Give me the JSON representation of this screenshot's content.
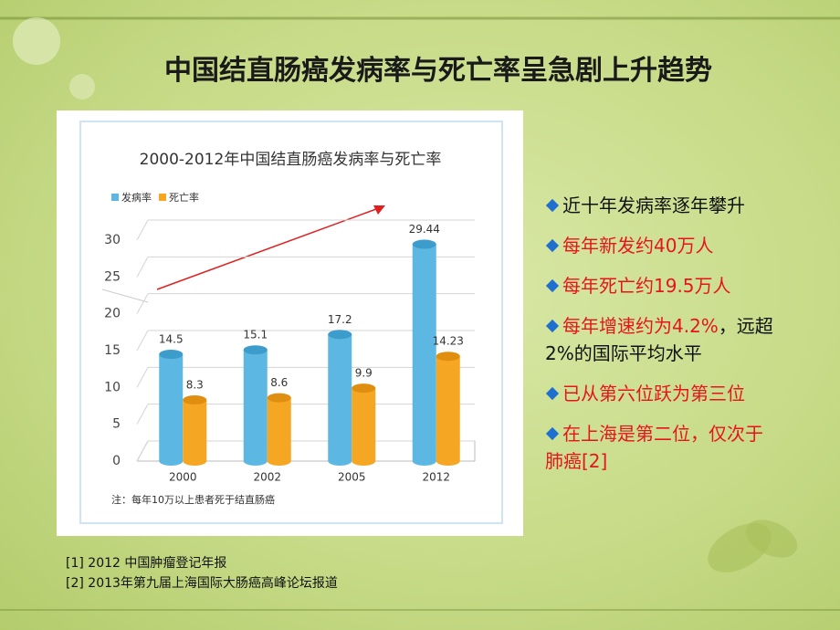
{
  "slide": {
    "title": "中国结直肠癌发病率与死亡率呈急剧上升趋势",
    "bullets": [
      [
        [
          {
            "text": "近十年发病率逐年攀升",
            "color": "#111111"
          }
        ]
      ],
      [
        [
          {
            "text": "每年新发约40万人",
            "color": "#e8141c"
          }
        ]
      ],
      [
        [
          {
            "text": "每年死亡约19.5万人",
            "color": "#e8141c"
          }
        ]
      ],
      [
        [
          {
            "text": "每年增速约为4.2%",
            "color": "#e8141c"
          },
          {
            "text": "，远超",
            "color": "#111111"
          }
        ],
        [
          {
            "text": "2%的国际平均水平",
            "color": "#111111"
          }
        ]
      ],
      [
        [
          {
            "text": "已从第六位跃为第三位",
            "color": "#e8141c"
          }
        ]
      ],
      [
        [
          {
            "text": "在上海是第二位，仅次于",
            "color": "#e8141c"
          }
        ],
        [
          {
            "text": "肺癌[2]",
            "color": "#e8141c"
          }
        ]
      ]
    ],
    "references": [
      "[1] 2012 中国肿瘤登记年报",
      "[2] 2013年第九届上海国际大肠癌高峰论坛报道"
    ]
  },
  "chart_data": {
    "type": "bar",
    "title": "2000-2012年中国结直肠癌发病率与死亡率",
    "categories": [
      "2000",
      "2002",
      "2005",
      "2012"
    ],
    "series": [
      {
        "name": "发病率",
        "color": "#5cb8e2",
        "values": [
          14.5,
          15.1,
          17.2,
          29.44
        ]
      },
      {
        "name": "死亡率",
        "color": "#f5a623",
        "values": [
          8.3,
          8.6,
          9.9,
          14.23
        ]
      }
    ],
    "ylim": [
      0,
      30
    ],
    "yticks": [
      0,
      5,
      10,
      15,
      20,
      25,
      30
    ],
    "grid": true,
    "legend": "top-left",
    "note": "注：每年10万以上患者死于结直肠癌"
  }
}
